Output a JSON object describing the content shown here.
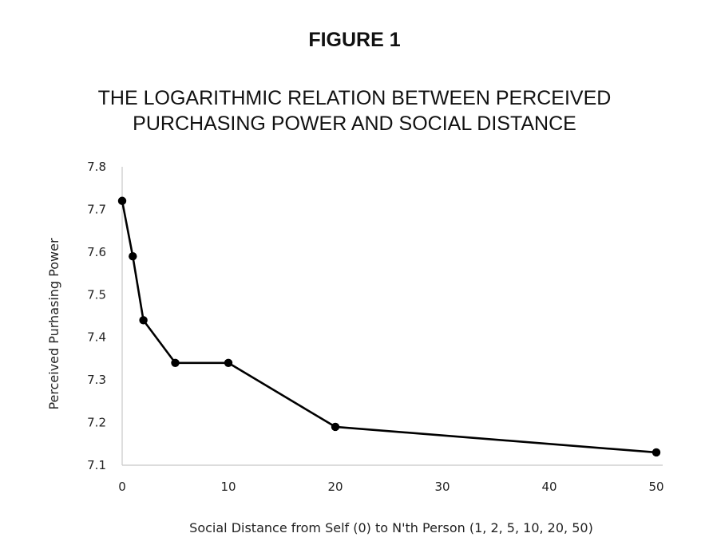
{
  "figure_label": "FIGURE 1",
  "chart_data": {
    "type": "line",
    "title_lines": [
      "THE LOGARITHMIC RELATION BETWEEN PERCEIVED",
      "PURCHASING POWER AND SOCIAL DISTANCE"
    ],
    "xlabel": "Social Distance from Self (0) to N'th Person (1, 2, 5, 10, 20, 50)",
    "ylabel": "Perceived Purhasing Power",
    "x_tick_labels": [
      "0",
      "10",
      "20",
      "30",
      "40",
      "50"
    ],
    "y_tick_labels": [
      "7.1",
      "7.2",
      "7.3",
      "7.4",
      "7.5",
      "7.6",
      "7.7",
      "7.8"
    ],
    "ylim": [
      7.1,
      7.8
    ],
    "x_axis_positions": [
      0,
      1,
      2,
      5,
      10,
      20,
      30,
      40,
      50
    ],
    "series": [
      {
        "name": "Perceived Purchasing Power",
        "x": [
          0,
          1,
          2,
          5,
          10,
          20,
          50
        ],
        "values": [
          7.72,
          7.59,
          7.44,
          7.34,
          7.34,
          7.19,
          7.13
        ]
      }
    ],
    "grid": false,
    "legend": "none"
  }
}
